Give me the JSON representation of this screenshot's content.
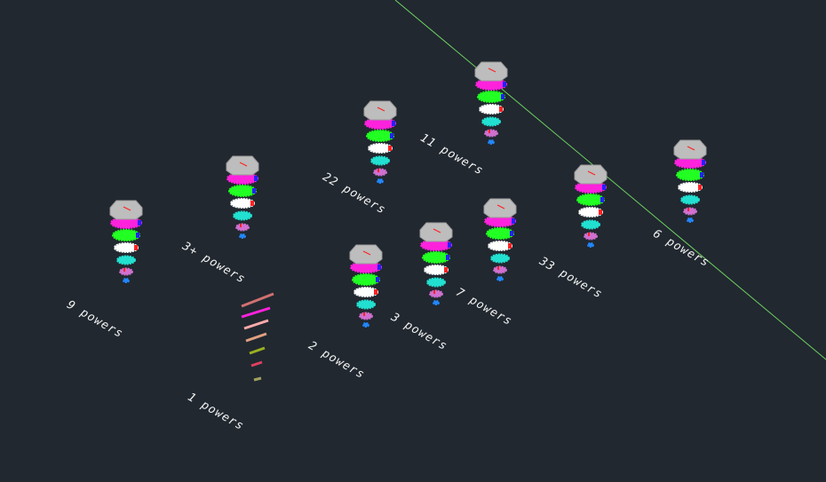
{
  "viewport": {
    "background": "#212830",
    "guide_line_color": "#6fcf5f"
  },
  "labels": {
    "nine": "9 powers",
    "three_plus": "3+ powers",
    "twenty_two": "22 powers",
    "eleven": "11 powers",
    "one": "1 powers",
    "two": "2 powers",
    "three": "3 powers",
    "seven": "7 powers",
    "thirty_three": "33 powers",
    "six": "6 powers"
  },
  "stack_colors": {
    "cap": "#bdbdbd",
    "tier_magenta": "#ff22dd",
    "tier_green": "#22ff22",
    "tier_white": "#ffffff",
    "tier_cyan": "#22e0d0",
    "tier_pink": "#d070d0",
    "tier_blue": "#2288ff",
    "accent_red": "#ff2222",
    "accent_blue": "#2222ff"
  }
}
